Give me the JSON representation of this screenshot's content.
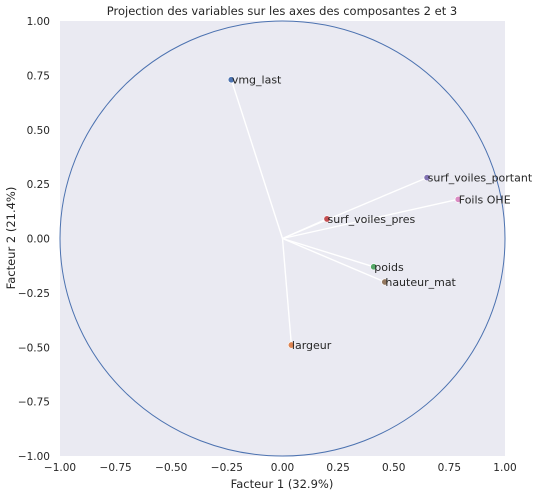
{
  "chart_data": {
    "type": "scatter",
    "title": "Projection des variables sur les axes des composantes 2 et 3",
    "xlabel": "Facteur 1 (32.9%)",
    "ylabel": "Facteur 2 (21.4%)",
    "xlim": [
      -1.0,
      1.0
    ],
    "ylim": [
      -1.0,
      1.0
    ],
    "xticks": [
      "−1.00",
      "−0.75",
      "−0.50",
      "−0.25",
      "0.00",
      "0.25",
      "0.50",
      "0.75",
      "1.00"
    ],
    "yticks": [
      "−1.00",
      "−0.75",
      "−0.50",
      "−0.25",
      "0.00",
      "0.25",
      "0.50",
      "0.75",
      "1.00"
    ],
    "xtick_values": [
      -1.0,
      -0.75,
      -0.5,
      -0.25,
      0.0,
      0.25,
      0.5,
      0.75,
      1.0
    ],
    "ytick_values": [
      -1.0,
      -0.75,
      -0.5,
      -0.25,
      0.0,
      0.25,
      0.5,
      0.75,
      1.0
    ],
    "grid": false,
    "unit_circle": true,
    "points": [
      {
        "label": "vmg_last",
        "x": -0.23,
        "y": 0.73,
        "color": "#4c72b0"
      },
      {
        "label": "surf_voiles_portant",
        "x": 0.65,
        "y": 0.28,
        "color": "#8172b3"
      },
      {
        "label": "Foils OHE",
        "x": 0.79,
        "y": 0.18,
        "color": "#da8bc3"
      },
      {
        "label": "surf_voiles_pres",
        "x": 0.2,
        "y": 0.09,
        "color": "#c44e52"
      },
      {
        "label": "poids",
        "x": 0.41,
        "y": -0.13,
        "color": "#55a868"
      },
      {
        "label": "hauteur_mat",
        "x": 0.46,
        "y": -0.2,
        "color": "#937860"
      },
      {
        "label": "largeur",
        "x": 0.04,
        "y": -0.49,
        "color": "#dd8452"
      }
    ],
    "colors": {
      "background": "#eaeaf2",
      "vectors": "#ffffff",
      "circle": "#4c72b0",
      "text": "#262626"
    }
  }
}
